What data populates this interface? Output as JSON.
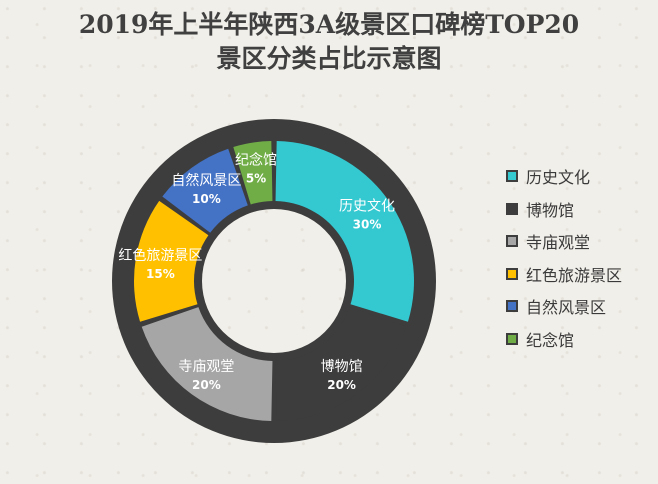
{
  "title_line1": "2019年上半年陕西3A级景区口碑榜TOP20",
  "title_line2": "景区分类占比示意图",
  "chart_data": {
    "type": "pie",
    "title": "2019年上半年陕西3A级景区口碑榜TOP20 景区分类占比示意图",
    "donut": true,
    "legend_position": "right",
    "slices": [
      {
        "name": "历史文化",
        "value": 30,
        "label": "30%",
        "color": "#34c8d1"
      },
      {
        "name": "博物馆",
        "value": 20,
        "label": "20%",
        "color": "#3d3d3d"
      },
      {
        "name": "寺庙观堂",
        "value": 20,
        "label": "20%",
        "color": "#a6a6a6"
      },
      {
        "name": "红色旅游景区",
        "value": 15,
        "label": "15%",
        "color": "#ffc000"
      },
      {
        "name": "自然风景区",
        "value": 10,
        "label": "10%",
        "color": "#4472c4"
      },
      {
        "name": "纪念馆",
        "value": 5,
        "label": "5%",
        "color": "#70ad47"
      }
    ]
  },
  "colors": {
    "ring_background": "#3d3d3d",
    "legend_swatch_border": "#3d3d3d"
  }
}
